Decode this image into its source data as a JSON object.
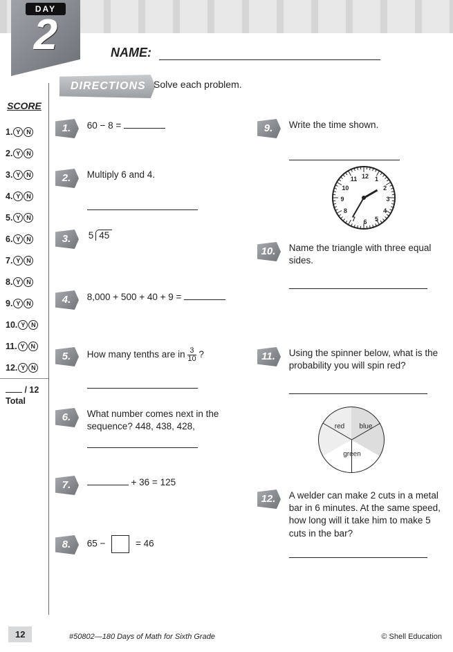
{
  "day": {
    "label": "DAY",
    "number": "2"
  },
  "name_label": "NAME:",
  "directions": {
    "tag": "DIRECTIONS",
    "text": "Solve each problem."
  },
  "score": {
    "title": "SCORE",
    "items": [
      "1.",
      "2.",
      "3.",
      "4.",
      "5.",
      "6.",
      "7.",
      "8.",
      "9.",
      "10.",
      "11.",
      "12."
    ],
    "yes": "Y",
    "no": "N",
    "total_denom": "/ 12",
    "total_label": "Total"
  },
  "problems": {
    "p1": {
      "num": "1.",
      "text": "60 − 8 ="
    },
    "p2": {
      "num": "2.",
      "text": "Multiply 6 and 4."
    },
    "p3": {
      "num": "3.",
      "divisor": "5",
      "dividend": "45"
    },
    "p4": {
      "num": "4.",
      "text": "8,000 + 500 + 40 + 9 ="
    },
    "p5": {
      "num": "5.",
      "text_a": "How many tenths are in ",
      "frac_n": "3",
      "frac_d": "10",
      "text_b": "?"
    },
    "p6": {
      "num": "6.",
      "text": "What number comes next in the sequence?  448, 438, 428,"
    },
    "p7": {
      "num": "7.",
      "text": "+ 36 = 125"
    },
    "p8": {
      "num": "8.",
      "text_a": "65 −",
      "text_b": "= 46"
    },
    "p9": {
      "num": "9.",
      "text": "Write the time shown."
    },
    "p10": {
      "num": "10.",
      "text": "Name the triangle with three equal sides."
    },
    "p11": {
      "num": "11.",
      "text": "Using the spinner below, what is the probability you will spin red?"
    },
    "p12": {
      "num": "12.",
      "text": "A welder can make 2 cuts in a metal bar in 6 minutes.  At the same speed, how long will it take him to make 5 cuts in the bar?"
    }
  },
  "clock": {
    "numbers": [
      "12",
      "1",
      "2",
      "3",
      "4",
      "5",
      "6",
      "7",
      "8",
      "9",
      "10",
      "11"
    ],
    "hour_angle": 60,
    "minute_angle": 210
  },
  "spinner": {
    "labels": {
      "red": "red",
      "blue": "blue",
      "green": "green"
    }
  },
  "footer": {
    "page": "12",
    "book": "#50802—180 Days of Math for Sixth Grade",
    "publisher": "© Shell Education"
  },
  "colors": {
    "badge_grad_a": "#a7aaad",
    "badge_grad_b": "#6f7378",
    "text": "#222222"
  }
}
